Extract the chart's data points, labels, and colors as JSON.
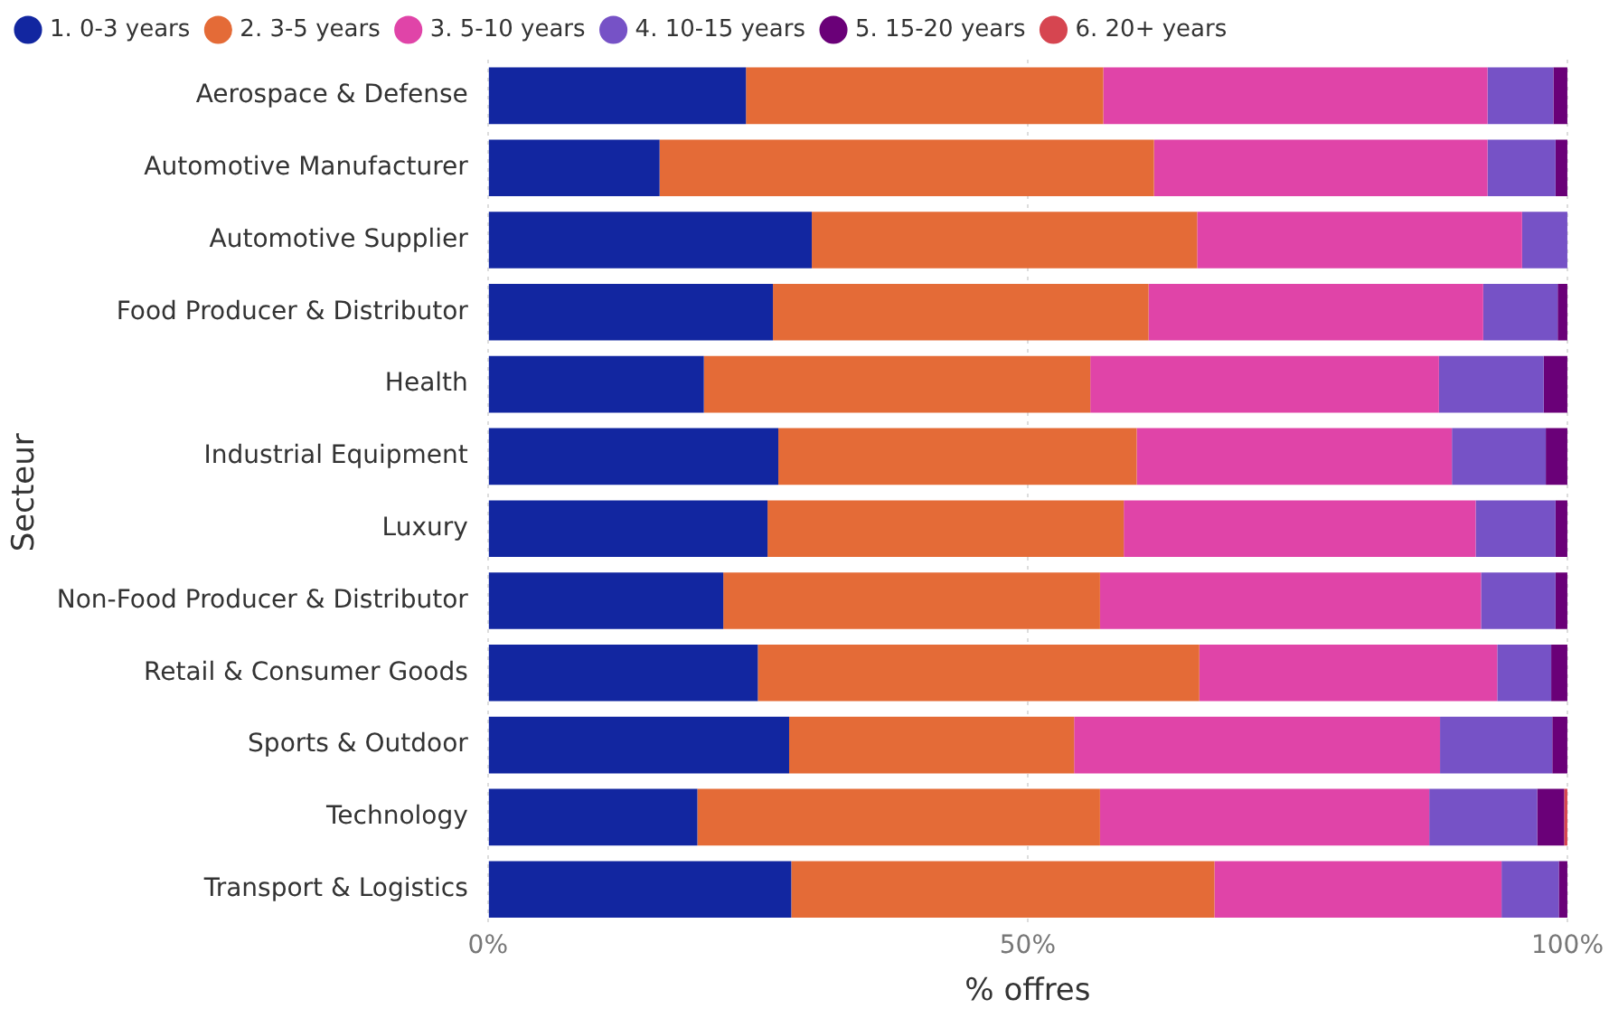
{
  "chart_data": {
    "type": "bar",
    "orientation": "horizontal",
    "stacked": true,
    "xlabel": "% offres",
    "ylabel": "Secteur",
    "categories": [
      "Aerospace & Defense",
      "Automotive Manufacturer",
      "Automotive Supplier",
      "Food Producer & Distributor",
      "Health",
      "Industrial Equipment",
      "Luxury",
      "Non-Food Producer & Distributor",
      "Retail & Consumer Goods",
      "Sports & Outdoor",
      "Technology",
      "Transport & Logistics"
    ],
    "series": [
      {
        "name": "1. 0-3 years",
        "color": "#1226a0",
        "values": [
          23.9,
          15.9,
          30.0,
          26.4,
          20.0,
          26.9,
          25.9,
          21.8,
          25.0,
          27.9,
          19.4,
          28.1
        ]
      },
      {
        "name": "2. 3-5 years",
        "color": "#e46b37",
        "values": [
          33.1,
          45.8,
          35.7,
          34.8,
          35.8,
          33.2,
          33.0,
          34.9,
          40.9,
          26.4,
          37.3,
          39.2
        ]
      },
      {
        "name": "3. 5-10 years",
        "color": "#e044a8",
        "values": [
          35.6,
          30.9,
          30.1,
          31.0,
          32.3,
          29.2,
          32.6,
          35.3,
          27.6,
          33.9,
          30.5,
          26.6
        ]
      },
      {
        "name": "4. 10-15 years",
        "color": "#7652c6",
        "values": [
          6.1,
          6.3,
          4.2,
          6.9,
          9.7,
          8.7,
          7.4,
          6.9,
          5.0,
          10.4,
          10.0,
          5.3
        ]
      },
      {
        "name": "5. 15-20 years",
        "color": "#6a0078",
        "values": [
          1.3,
          1.1,
          0,
          0.9,
          2.2,
          2.0,
          1.1,
          1.1,
          1.5,
          1.4,
          2.5,
          0.8
        ]
      },
      {
        "name": "6. 20+ years",
        "color": "#d64550",
        "values": [
          0,
          0,
          0,
          0,
          0,
          0,
          0,
          0,
          0,
          0,
          0.3,
          0
        ]
      }
    ],
    "xlim": [
      0,
      100
    ],
    "xticks": [
      {
        "value": 0,
        "label": "0%"
      },
      {
        "value": 50,
        "label": "50%"
      },
      {
        "value": 100,
        "label": "100%"
      }
    ],
    "grid": "x",
    "legend": "top left"
  }
}
